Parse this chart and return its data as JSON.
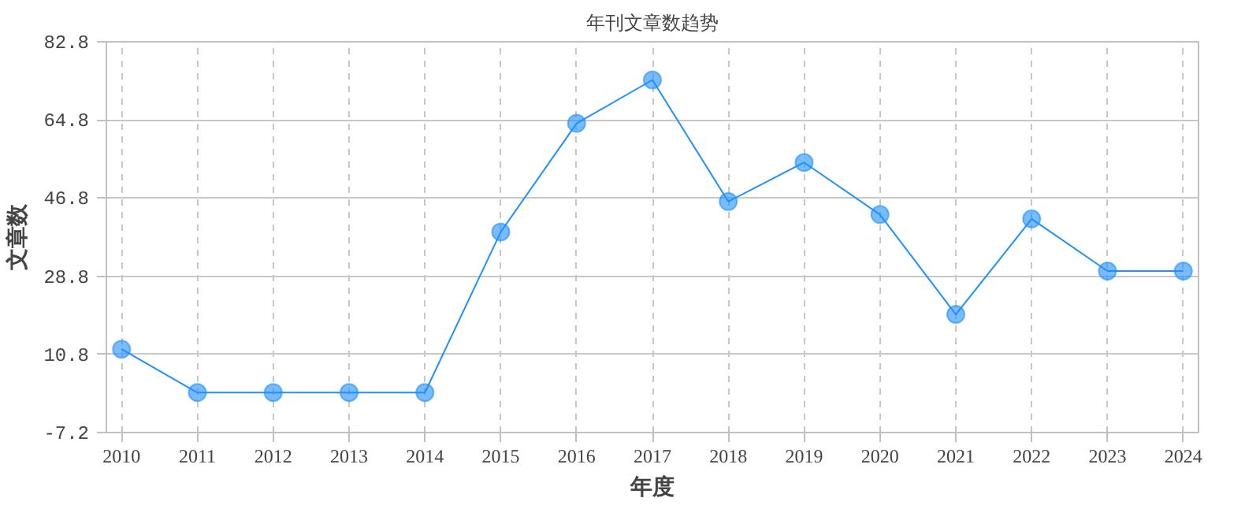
{
  "chart_data": {
    "type": "line",
    "title": "年刊文章数趋势",
    "xlabel": "年度",
    "ylabel": "文章数",
    "categories": [
      "2010",
      "2011",
      "2012",
      "2013",
      "2014",
      "2015",
      "2016",
      "2017",
      "2018",
      "2019",
      "2020",
      "2021",
      "2022",
      "2023",
      "2024"
    ],
    "series": [
      {
        "color": "#1e90ff",
        "values": [
          12,
          2,
          2,
          2,
          2,
          39,
          64,
          74,
          46,
          55,
          43,
          20,
          42,
          30,
          30
        ]
      }
    ],
    "ylim": [
      -7.2,
      82.8
    ],
    "yticks": [
      -7.2,
      10.8,
      28.8,
      46.8,
      64.8,
      82.8
    ],
    "grid": true,
    "marker": "circle",
    "line_style": "solid"
  }
}
